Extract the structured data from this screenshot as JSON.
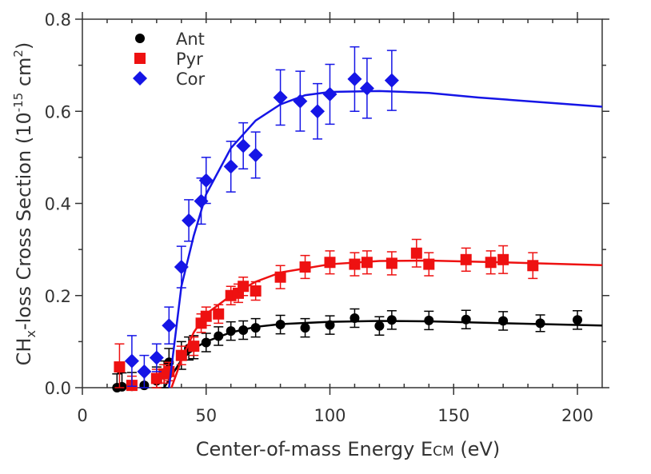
{
  "chart_data": {
    "type": "scatter",
    "x_label": [
      "Center-of-mass Energy E",
      "CM",
      " (eV)"
    ],
    "y_label": [
      "CH",
      "x",
      "-loss Cross Section (10",
      "-15",
      " cm",
      "2",
      ")"
    ],
    "xlim": [
      0,
      210
    ],
    "ylim": [
      0,
      0.8
    ],
    "xticks": [
      0,
      50,
      100,
      150,
      200
    ],
    "yticks": [
      {
        "value": 0,
        "label": "0.0"
      },
      {
        "value": 0.2,
        "label": "0.2"
      },
      {
        "value": 0.4,
        "label": "0.4"
      },
      {
        "value": 0.6,
        "label": "0.6"
      },
      {
        "value": 0.8,
        "label": "0.8"
      }
    ],
    "legend": "upper left",
    "series": [
      {
        "name": "Ant",
        "color": "#000000",
        "marker": "circle",
        "x": [
          14,
          16,
          20,
          25,
          30,
          33,
          35,
          40,
          43,
          45,
          50,
          55,
          60,
          65,
          70,
          80,
          90,
          100,
          110,
          120,
          125,
          140,
          155,
          170,
          185,
          200
        ],
        "values": [
          0,
          0.002,
          0.003,
          0.005,
          0.015,
          0.028,
          0.055,
          0.07,
          0.085,
          0.088,
          0.098,
          0.112,
          0.123,
          0.125,
          0.13,
          0.137,
          0.13,
          0.136,
          0.151,
          0.134,
          0.147,
          0.146,
          0.148,
          0.145,
          0.14,
          0.147
        ],
        "errors": [
          0.03,
          0.03,
          0.03,
          0.03,
          0.03,
          0.03,
          0.03,
          0.03,
          0.025,
          0.025,
          0.02,
          0.02,
          0.02,
          0.02,
          0.02,
          0.02,
          0.02,
          0.02,
          0.02,
          0.02,
          0.02,
          0.02,
          0.02,
          0.02,
          0.018,
          0.02
        ],
        "fit": {
          "x": [
            33,
            40,
            45,
            50,
            60,
            70,
            80,
            100,
            120,
            140,
            170,
            210
          ],
          "values": [
            0,
            0.06,
            0.085,
            0.1,
            0.12,
            0.132,
            0.138,
            0.143,
            0.145,
            0.144,
            0.14,
            0.135
          ]
        }
      },
      {
        "name": "Pyr",
        "color": "#ee1111",
        "marker": "square",
        "x": [
          15,
          20,
          30,
          33,
          35,
          40,
          45,
          48,
          50,
          55,
          60,
          63,
          65,
          70,
          80,
          90,
          100,
          110,
          115,
          125,
          135,
          140,
          155,
          165,
          170,
          182
        ],
        "values": [
          0.045,
          0.005,
          0.02,
          0.03,
          0.035,
          0.07,
          0.09,
          0.14,
          0.155,
          0.16,
          0.2,
          0.205,
          0.22,
          0.21,
          0.24,
          0.262,
          0.272,
          0.268,
          0.272,
          0.27,
          0.292,
          0.268,
          0.278,
          0.272,
          0.278,
          0.265
        ],
        "errors": [
          0.05,
          0.02,
          0.02,
          0.02,
          0.02,
          0.02,
          0.02,
          0.02,
          0.02,
          0.02,
          0.02,
          0.02,
          0.02,
          0.02,
          0.025,
          0.025,
          0.025,
          0.025,
          0.025,
          0.025,
          0.03,
          0.025,
          0.025,
          0.025,
          0.03,
          0.028
        ],
        "fit": {
          "x": [
            36,
            40,
            45,
            50,
            60,
            70,
            80,
            100,
            120,
            140,
            170,
            210
          ],
          "values": [
            0,
            0.06,
            0.12,
            0.16,
            0.2,
            0.23,
            0.25,
            0.268,
            0.275,
            0.276,
            0.272,
            0.266
          ]
        }
      },
      {
        "name": "Cor",
        "color": "#1515e6",
        "marker": "diamond",
        "x": [
          20,
          25,
          30,
          35,
          40,
          43,
          48,
          50,
          60,
          65,
          70,
          80,
          88,
          95,
          100,
          110,
          115,
          125
        ],
        "values": [
          0.058,
          0.035,
          0.065,
          0.135,
          0.262,
          0.363,
          0.405,
          0.45,
          0.48,
          0.525,
          0.505,
          0.63,
          0.622,
          0.6,
          0.637,
          0.67,
          0.65,
          0.667
        ],
        "errors": [
          0.055,
          0.035,
          0.03,
          0.04,
          0.045,
          0.045,
          0.05,
          0.05,
          0.055,
          0.05,
          0.05,
          0.06,
          0.065,
          0.06,
          0.065,
          0.07,
          0.065,
          0.065
        ],
        "fit": {
          "x": [
            35,
            40,
            45,
            50,
            60,
            70,
            80,
            90,
            100,
            120,
            140,
            160,
            180,
            210
          ],
          "values": [
            0,
            0.22,
            0.33,
            0.42,
            0.52,
            0.58,
            0.615,
            0.635,
            0.642,
            0.644,
            0.64,
            0.63,
            0.622,
            0.61
          ]
        }
      }
    ]
  }
}
